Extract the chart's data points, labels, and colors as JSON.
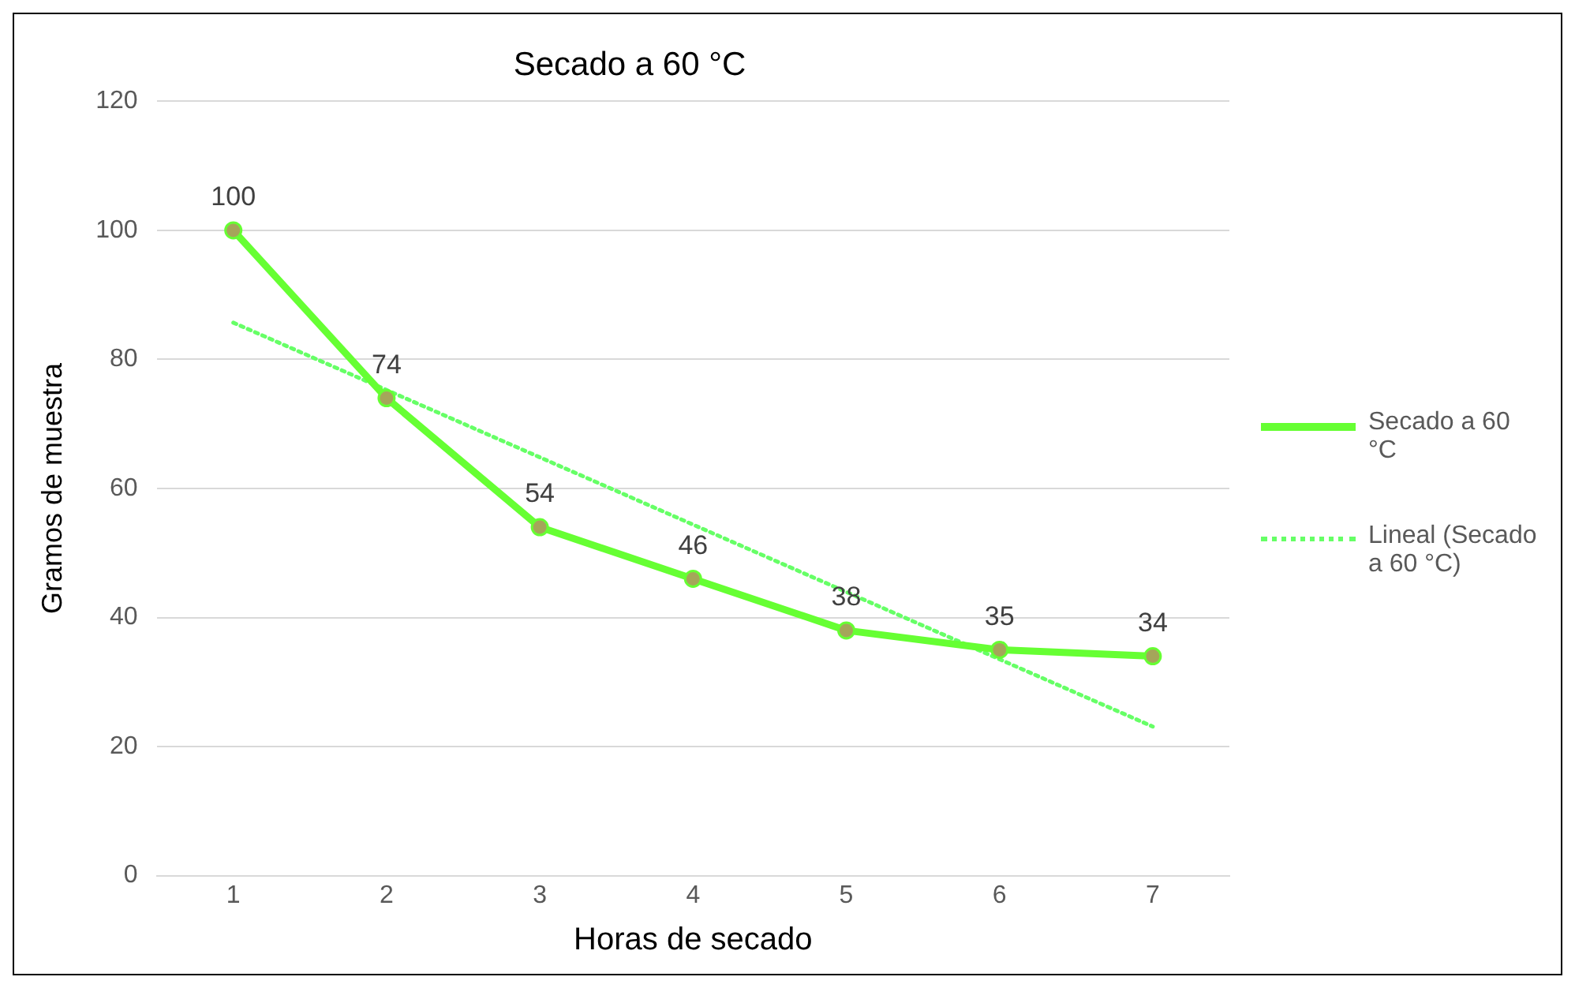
{
  "chart_data": {
    "type": "line",
    "title": "Secado a 60 °C",
    "xlabel": "Horas de secado",
    "ylabel": "Gramos de muestra",
    "x": [
      1,
      2,
      3,
      4,
      5,
      6,
      7
    ],
    "xlim": [
      0.5,
      7.5
    ],
    "xticks": [
      1,
      2,
      3,
      4,
      5,
      6,
      7
    ],
    "ylim": [
      0,
      120
    ],
    "yticks": [
      0,
      20,
      40,
      60,
      80,
      100,
      120
    ],
    "series": [
      {
        "name": "Secado a 60 °C",
        "color": "#66ff33",
        "values": [
          100,
          74,
          54,
          46,
          38,
          35,
          34
        ],
        "marker": "circle",
        "line_style": "solid",
        "data_labels": true
      },
      {
        "name": "Lineal (Secado a 60 °C)",
        "color": "#66ff66",
        "x": [
          1,
          7
        ],
        "values": [
          85.7,
          23.1
        ],
        "marker": "none",
        "line_style": "dotted"
      }
    ],
    "grid": "y",
    "legend": "right"
  }
}
